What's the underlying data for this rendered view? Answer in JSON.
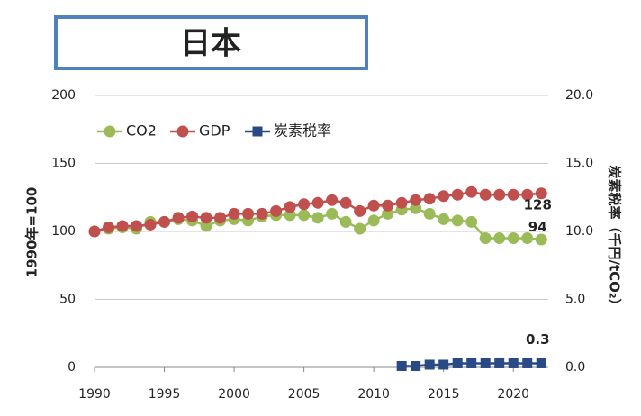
{
  "chart_data": {
    "type": "line",
    "title": "日本",
    "y_label": "1990年=100",
    "y2_label": "炭素税率（千円/tCO₂）",
    "x": [
      1990,
      1991,
      1992,
      1993,
      1994,
      1995,
      1996,
      1997,
      1998,
      1999,
      2000,
      2001,
      2002,
      2003,
      2004,
      2005,
      2006,
      2007,
      2008,
      2009,
      2010,
      2011,
      2012,
      2013,
      2014,
      2015,
      2016,
      2017,
      2018,
      2019,
      2020,
      2021,
      2022
    ],
    "xlim": [
      1990,
      2022.5
    ],
    "xticks": [
      1990,
      1995,
      2000,
      2005,
      2010,
      2015,
      2020
    ],
    "ylim": [
      0,
      200
    ],
    "yticks": [
      0,
      50,
      100,
      150,
      200
    ],
    "y2lim": [
      0,
      20
    ],
    "y2ticks": [
      {
        "value": 0,
        "label": "0.0"
      },
      {
        "value": 5,
        "label": "5.0"
      },
      {
        "value": 10,
        "label": "10.0"
      },
      {
        "value": 15,
        "label": "15.0"
      },
      {
        "value": 20,
        "label": "20.0"
      }
    ],
    "grid": true,
    "legend": "top-left",
    "series": [
      {
        "name": "CO2",
        "color": "#9bbb59",
        "marker": "circle",
        "values": [
          100,
          102,
          103,
          102,
          107,
          107,
          109,
          108,
          104,
          108,
          109,
          108,
          111,
          112,
          112,
          112,
          110,
          113,
          107,
          102,
          108,
          113,
          116,
          117,
          113,
          109,
          108,
          107,
          95,
          95,
          95,
          95,
          94
        ]
      },
      {
        "name": "GDP",
        "color": "#c0504d",
        "marker": "circle",
        "values": [
          100,
          103,
          104,
          104,
          105,
          107,
          110,
          111,
          110,
          110,
          113,
          113,
          113,
          115,
          118,
          120,
          121,
          123,
          121,
          115,
          119,
          119,
          121,
          123,
          124,
          126,
          127,
          129,
          127,
          127,
          127,
          127,
          128
        ]
      },
      {
        "name": "炭素税率",
        "color": "#2a4a86",
        "marker": "square",
        "axis": "y2",
        "values": [
          null,
          null,
          null,
          null,
          null,
          null,
          null,
          null,
          null,
          null,
          null,
          null,
          null,
          null,
          null,
          null,
          null,
          null,
          null,
          null,
          null,
          null,
          0.1,
          0.1,
          0.2,
          0.2,
          0.3,
          0.3,
          0.3,
          0.3,
          0.3,
          0.3,
          0.3
        ]
      }
    ],
    "annotations": [
      "128",
      "94",
      "0.3"
    ]
  }
}
